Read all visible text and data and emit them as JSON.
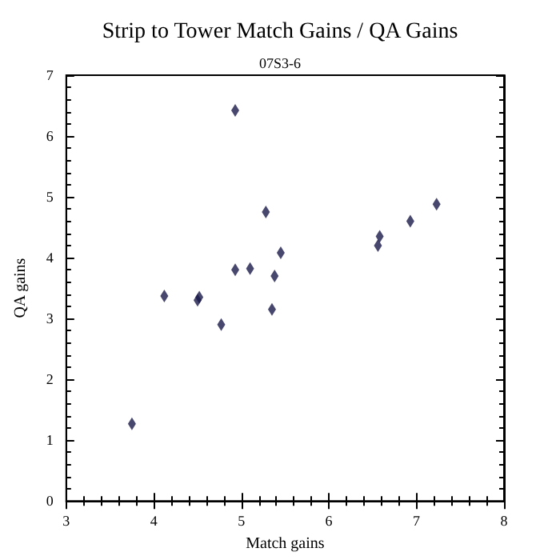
{
  "chart_data": {
    "type": "scatter",
    "title": "Strip to Tower Match Gains / QA Gains",
    "subtitle": "07S3-6",
    "xlabel": "Match gains",
    "ylabel": "QA gains",
    "x": [
      3.75,
      4.12,
      4.5,
      4.52,
      4.77,
      4.93,
      4.93,
      5.1,
      5.28,
      5.35,
      5.38,
      5.45,
      6.56,
      6.58,
      6.93,
      7.23
    ],
    "values": [
      1.27,
      3.37,
      3.3,
      3.35,
      2.9,
      6.42,
      3.8,
      3.82,
      4.75,
      3.15,
      3.7,
      4.08,
      4.2,
      4.35,
      4.6,
      4.88
    ],
    "color": "#1a1a4a",
    "marker": "diamond",
    "xlim": [
      3,
      8
    ],
    "xticks": [
      3,
      4,
      5,
      6,
      7,
      8
    ],
    "ylim": [
      0,
      7
    ],
    "yticks": [
      0,
      1,
      2,
      3,
      4,
      5,
      6,
      7
    ],
    "grid": false
  }
}
